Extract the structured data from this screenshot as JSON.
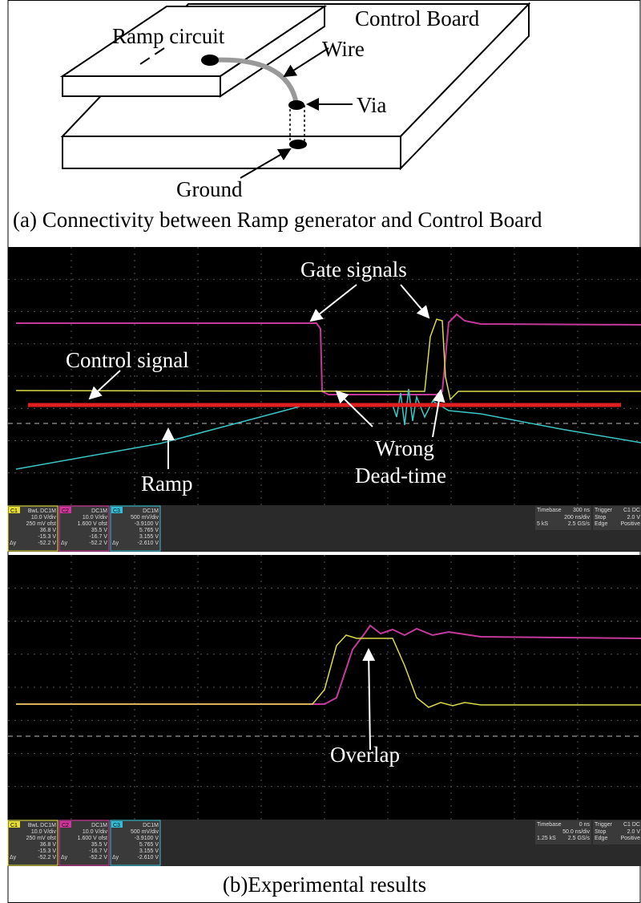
{
  "figure_a": {
    "labels": {
      "ramp_circuit": "Ramp circuit",
      "control_board": "Control Board",
      "wire": "Wire",
      "via": "Via",
      "ground": "Ground"
    },
    "caption": "(a) Connectivity between Ramp generator and Control Board"
  },
  "scopes": [
    {
      "annotations": {
        "gate_signals": "Gate signals",
        "control_signal": "Control signal",
        "wrong": "Wrong",
        "dead_time": "Dead-time",
        "ramp": "Ramp"
      },
      "channels": [
        {
          "id": "C1",
          "coupling": "BwL DC1M",
          "lines": [
            "10.0 V/div",
            "250 mV ofst",
            "36.8 V",
            "-15.3 V",
            "-52.2 V"
          ],
          "delta": "Δy"
        },
        {
          "id": "C2",
          "coupling": "DC1M",
          "lines": [
            "10.0 V/div",
            "1.600 V ofst",
            "35.5 V",
            "-16.7 V",
            "-52.2 V"
          ],
          "delta": "Δy"
        },
        {
          "id": "C3",
          "coupling": "DC1M",
          "lines": [
            "500 mV/div",
            "-3.9100 V",
            "5.765 V",
            "3.155 V",
            "-2.610 V"
          ],
          "delta": "Δy"
        }
      ],
      "timebase": {
        "label": "Timebase",
        "delay": "300 ns",
        "div": "200 ns/div",
        "samples": "5 kS",
        "rate": "2.5 GS/s"
      },
      "trigger": {
        "label": "Trigger",
        "source": "C1 DC",
        "mode": "Stop",
        "level": "2.0 V",
        "type": "Edge",
        "slope": "Positive"
      }
    },
    {
      "annotations": {
        "overlap": "Overlap"
      },
      "channels": [
        {
          "id": "C1",
          "coupling": "BwL DC1M",
          "lines": [
            "10.0 V/div",
            "250 mV ofst",
            "36.8 V",
            "-15.3 V",
            "-52.2 V"
          ],
          "delta": "Δy"
        },
        {
          "id": "C2",
          "coupling": "DC1M",
          "lines": [
            "10.0 V/div",
            "1.600 V ofst",
            "35.5 V",
            "-16.7 V",
            "-52.2 V"
          ],
          "delta": "Δy"
        },
        {
          "id": "C3",
          "coupling": "DC1M",
          "lines": [
            "500 mV/div",
            "-3.9100 V",
            "5.765 V",
            "3.155 V",
            "-2.610 V"
          ],
          "delta": "Δy"
        }
      ],
      "timebase": {
        "label": "Timebase",
        "delay": "0 ns",
        "div": "50.0 ns/div",
        "samples": "1.25 kS",
        "rate": "2.5 GS/s"
      },
      "trigger": {
        "label": "Trigger",
        "source": "C1 DC",
        "mode": "Stop",
        "level": "2.0 V",
        "type": "Edge",
        "slope": "Positive"
      }
    }
  ],
  "caption_b": "(b)Experimental results"
}
